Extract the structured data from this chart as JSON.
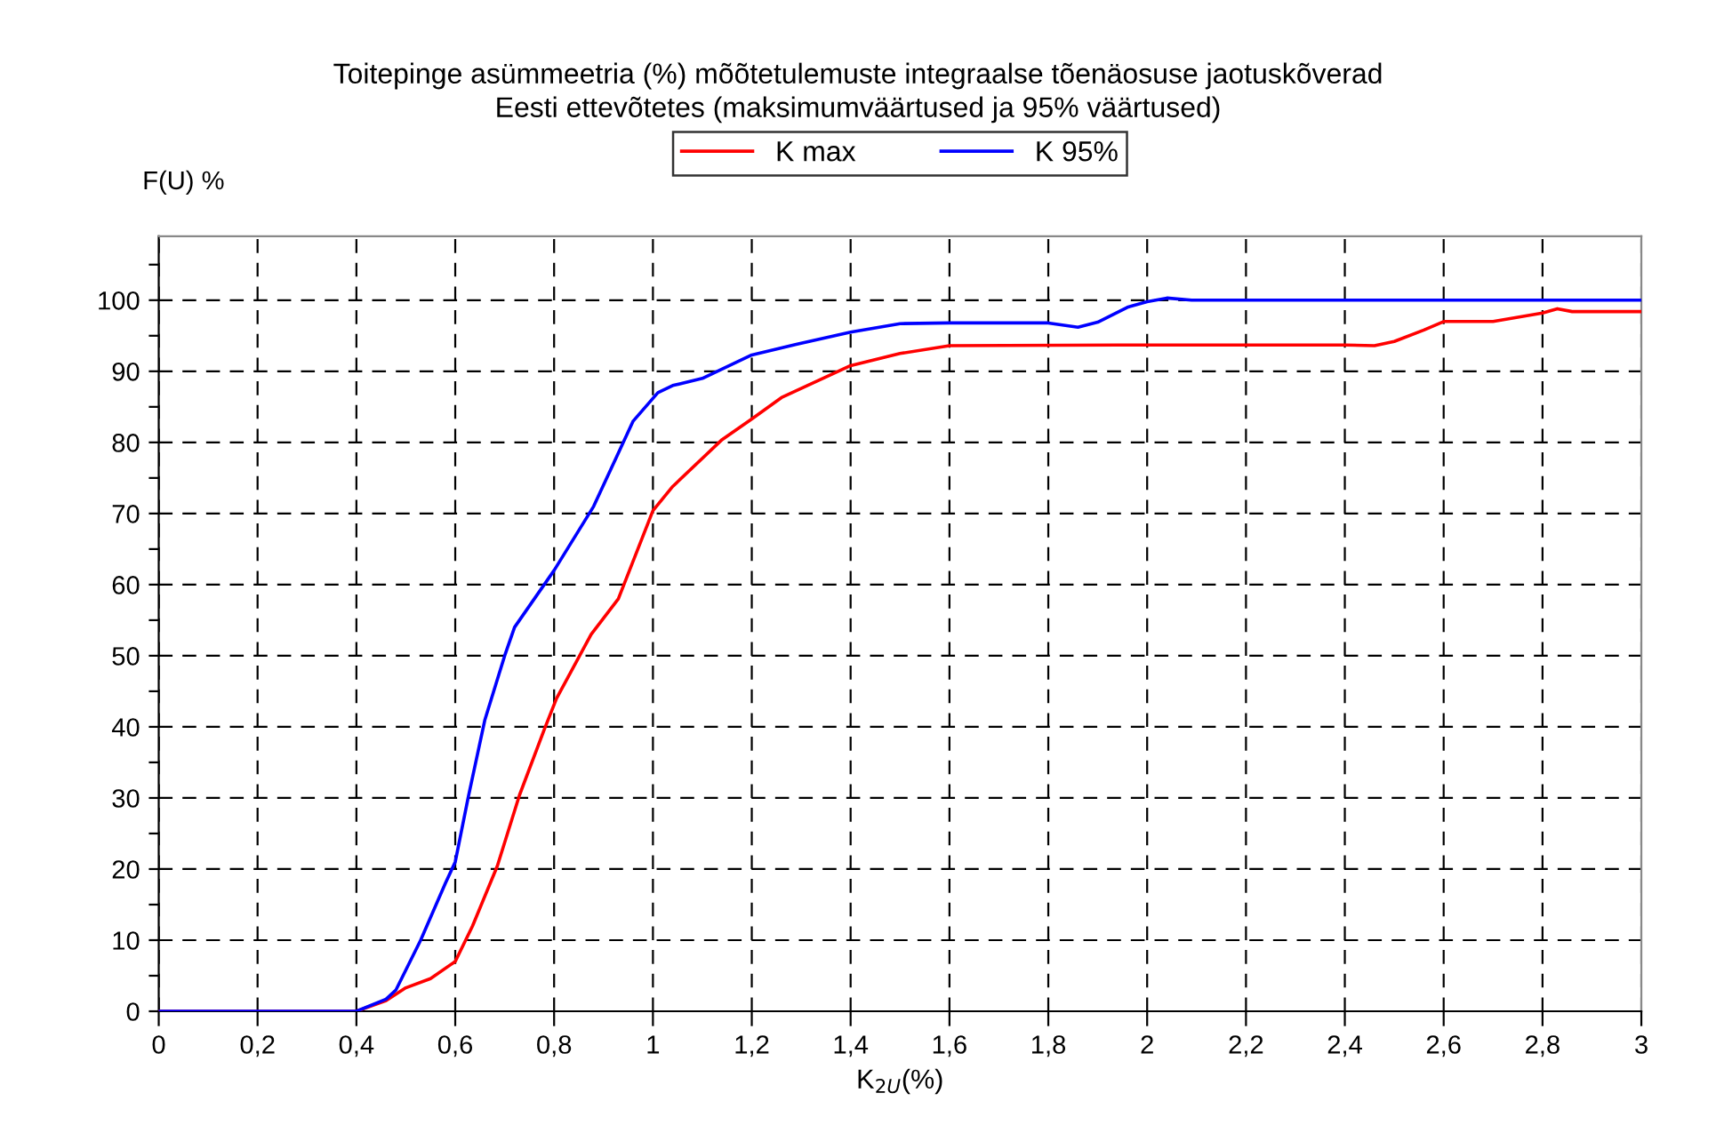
{
  "chart_data": {
    "type": "line",
    "title": "Toitepinge asümmeetria (%) mõõtetulemuste integraalse tõenäosuse jaotuskõverad\nEesti ettevõtetes (maksimumväärtused ja 95% väärtused)",
    "xlabel": "K$_{2U}$(%)",
    "ylabel": "F(U) %",
    "series": [
      {
        "name": "K max",
        "color": "#ff0000",
        "x": [
          0,
          0.3,
          0.4,
          0.46,
          0.5,
          0.55,
          0.6,
          0.635,
          0.685,
          0.73,
          0.78,
          0.805,
          0.875,
          0.93,
          1.0,
          1.04,
          1.14,
          1.2,
          1.26,
          1.4,
          1.5,
          1.6,
          1.94,
          2.4,
          2.46,
          2.5,
          2.56,
          2.6,
          2.7,
          2.8,
          2.83,
          2.86,
          3.0
        ],
        "values": [
          0,
          0,
          0,
          1.5,
          3.3,
          4.6,
          7,
          12,
          20.4,
          30.4,
          39.6,
          44,
          53,
          58,
          70.4,
          73.8,
          80.4,
          83.3,
          86.3,
          90.8,
          92.5,
          93.6,
          93.7,
          93.7,
          93.6,
          94.2,
          95.8,
          97,
          97,
          98.2,
          98.8,
          98.4,
          98.4
        ]
      },
      {
        "name": "K 95%",
        "color": "#0000ff",
        "x": [
          0,
          0.3,
          0.375,
          0.4,
          0.46,
          0.48,
          0.53,
          0.58,
          0.6,
          0.626,
          0.66,
          0.7,
          0.72,
          0.755,
          0.8,
          0.88,
          0.96,
          1.01,
          1.04,
          1.1,
          1.2,
          1.29,
          1.4,
          1.5,
          1.6,
          1.8,
          1.86,
          1.9,
          1.96,
          2.0,
          2.04,
          2.09,
          3.0
        ],
        "values": [
          0,
          0,
          0,
          0,
          1.7,
          3,
          10,
          18,
          21,
          30,
          41,
          50,
          54,
          57.5,
          62,
          71,
          83,
          87,
          88,
          89,
          92.3,
          93.8,
          95.5,
          96.7,
          96.8,
          96.8,
          96.2,
          96.9,
          99,
          99.8,
          100.3,
          100,
          100
        ]
      }
    ],
    "xlim": [
      0,
      3
    ],
    "ylim": [
      0,
      109
    ],
    "xticks": [
      0,
      {
        "value": 0.2,
        "label": "0,2"
      },
      {
        "value": 0.4,
        "label": "0,4"
      },
      {
        "value": 0.6,
        "label": "0,6"
      },
      {
        "value": 0.8,
        "label": "0,8"
      },
      1,
      {
        "value": 1.2,
        "label": "1,2"
      },
      {
        "value": 1.4,
        "label": "1,4"
      },
      {
        "value": 1.6,
        "label": "1,6"
      },
      {
        "value": 1.8,
        "label": "1,8"
      },
      2,
      {
        "value": 2.2,
        "label": "2,2"
      },
      {
        "value": 2.4,
        "label": "2,4"
      },
      {
        "value": 2.6,
        "label": "2,6"
      },
      {
        "value": 2.8,
        "label": "2,8"
      },
      3
    ],
    "yticks": [
      0,
      {
        "value": 5,
        "label": null
      },
      10,
      {
        "value": 15,
        "label": null
      },
      20,
      {
        "value": 25,
        "label": null
      },
      30,
      {
        "value": 35,
        "label": null
      },
      40,
      {
        "value": 45,
        "label": null
      },
      50,
      {
        "value": 55,
        "label": null
      },
      60,
      {
        "value": 65,
        "label": null
      },
      70,
      {
        "value": 75,
        "label": null
      },
      80,
      {
        "value": 85,
        "label": null
      },
      90,
      {
        "value": 95,
        "label": null
      },
      100,
      {
        "value": 105,
        "label": null
      }
    ],
    "grid": true,
    "legend": "top",
    "line_style": "solid",
    "marker": "none"
  }
}
